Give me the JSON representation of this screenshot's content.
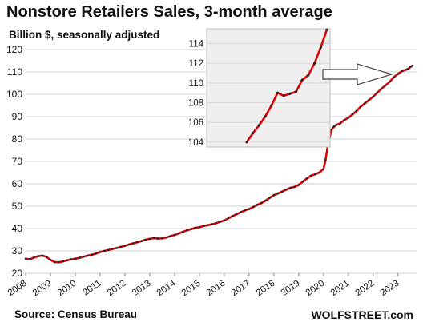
{
  "title": "Nonstore Retailers Sales, 3-month average",
  "subtitle": "Billion $, seasonally adjusted",
  "source": "Source: Census Bureau",
  "credit": "WOLFSTREET.com",
  "chart_data": {
    "type": "line",
    "title": "Nonstore Retailers Sales, 3-month average",
    "ylabel": "Billion $, seasonally adjusted",
    "xlabel": "",
    "ylim": [
      20,
      120
    ],
    "yticks": [
      20,
      30,
      40,
      50,
      60,
      70,
      80,
      90,
      100,
      110,
      120
    ],
    "xticks": [
      "2008",
      "2009",
      "2010",
      "2011",
      "2012",
      "2013",
      "2014",
      "2015",
      "2016",
      "2017",
      "2018",
      "2019",
      "2020",
      "2021",
      "2022",
      "2023"
    ],
    "grid": true,
    "line_color": "#e00000",
    "marker_color": "#222222",
    "series": [
      {
        "x": [
          2008.0,
          2008.17,
          2008.33,
          2008.5,
          2008.67,
          2008.83,
          2009.0,
          2009.17,
          2009.33,
          2009.5,
          2009.67,
          2009.83,
          2010.0,
          2010.17,
          2010.33,
          2010.5,
          2010.67,
          2010.83,
          2011.0,
          2011.17,
          2011.33,
          2011.5,
          2011.67,
          2011.83,
          2012.0,
          2012.17,
          2012.33,
          2012.5,
          2012.67,
          2012.83,
          2013.0,
          2013.17,
          2013.33,
          2013.5,
          2013.67,
          2013.83,
          2014.0,
          2014.17,
          2014.33,
          2014.5,
          2014.67,
          2014.83,
          2015.0,
          2015.17,
          2015.33,
          2015.5,
          2015.67,
          2015.83,
          2016.0,
          2016.17,
          2016.33,
          2016.5,
          2016.67,
          2016.83,
          2017.0,
          2017.17,
          2017.33,
          2017.5,
          2017.67,
          2017.83,
          2018.0,
          2018.17,
          2018.33,
          2018.5,
          2018.67,
          2018.83,
          2019.0,
          2019.17,
          2019.33,
          2019.5,
          2019.67,
          2019.83,
          2020.0,
          2020.08,
          2020.17,
          2020.25,
          2020.33,
          2020.42,
          2020.5,
          2020.67,
          2020.83,
          2021.0,
          2021.17,
          2021.33,
          2021.5,
          2021.67,
          2021.83,
          2022.0,
          2022.17,
          2022.33,
          2022.5,
          2022.67,
          2022.83,
          2023.0,
          2023.17,
          2023.33,
          2023.42,
          2023.5,
          2023.58
        ],
        "y": [
          26.5,
          26.3,
          27.0,
          27.6,
          27.9,
          27.4,
          26.0,
          25.0,
          24.9,
          25.3,
          25.8,
          26.2,
          26.5,
          26.9,
          27.4,
          27.9,
          28.3,
          28.8,
          29.5,
          30.0,
          30.4,
          30.9,
          31.3,
          31.8,
          32.3,
          32.9,
          33.4,
          33.9,
          34.4,
          35.0,
          35.4,
          35.7,
          35.5,
          35.6,
          36.0,
          36.6,
          37.1,
          37.8,
          38.5,
          39.2,
          39.8,
          40.3,
          40.6,
          41.1,
          41.5,
          41.9,
          42.4,
          43.0,
          43.6,
          44.6,
          45.5,
          46.4,
          47.3,
          48.1,
          48.7,
          49.6,
          50.6,
          51.4,
          52.5,
          53.7,
          54.9,
          55.7,
          56.5,
          57.4,
          58.2,
          58.6,
          59.5,
          61.0,
          62.4,
          63.6,
          64.3,
          65.0,
          66.6,
          70.5,
          76.8,
          80.8,
          84.2,
          85.5,
          86.2,
          87.0,
          88.4,
          89.5,
          91.0,
          92.5,
          94.5,
          96.0,
          97.4,
          98.9,
          100.8,
          102.4,
          104.0,
          105.6,
          107.6,
          109.1,
          110.4,
          111.0,
          111.4,
          112.2,
          112.8
        ]
      }
    ],
    "inset": {
      "ylim": [
        103.5,
        115.5
      ],
      "yticks": [
        104,
        106,
        108,
        110,
        112,
        114
      ],
      "values": [
        104.0,
        104.9,
        105.7,
        106.6,
        107.7,
        109.0,
        108.7,
        108.9,
        109.1,
        110.3,
        110.8,
        112.0,
        113.6,
        115.4
      ]
    }
  }
}
